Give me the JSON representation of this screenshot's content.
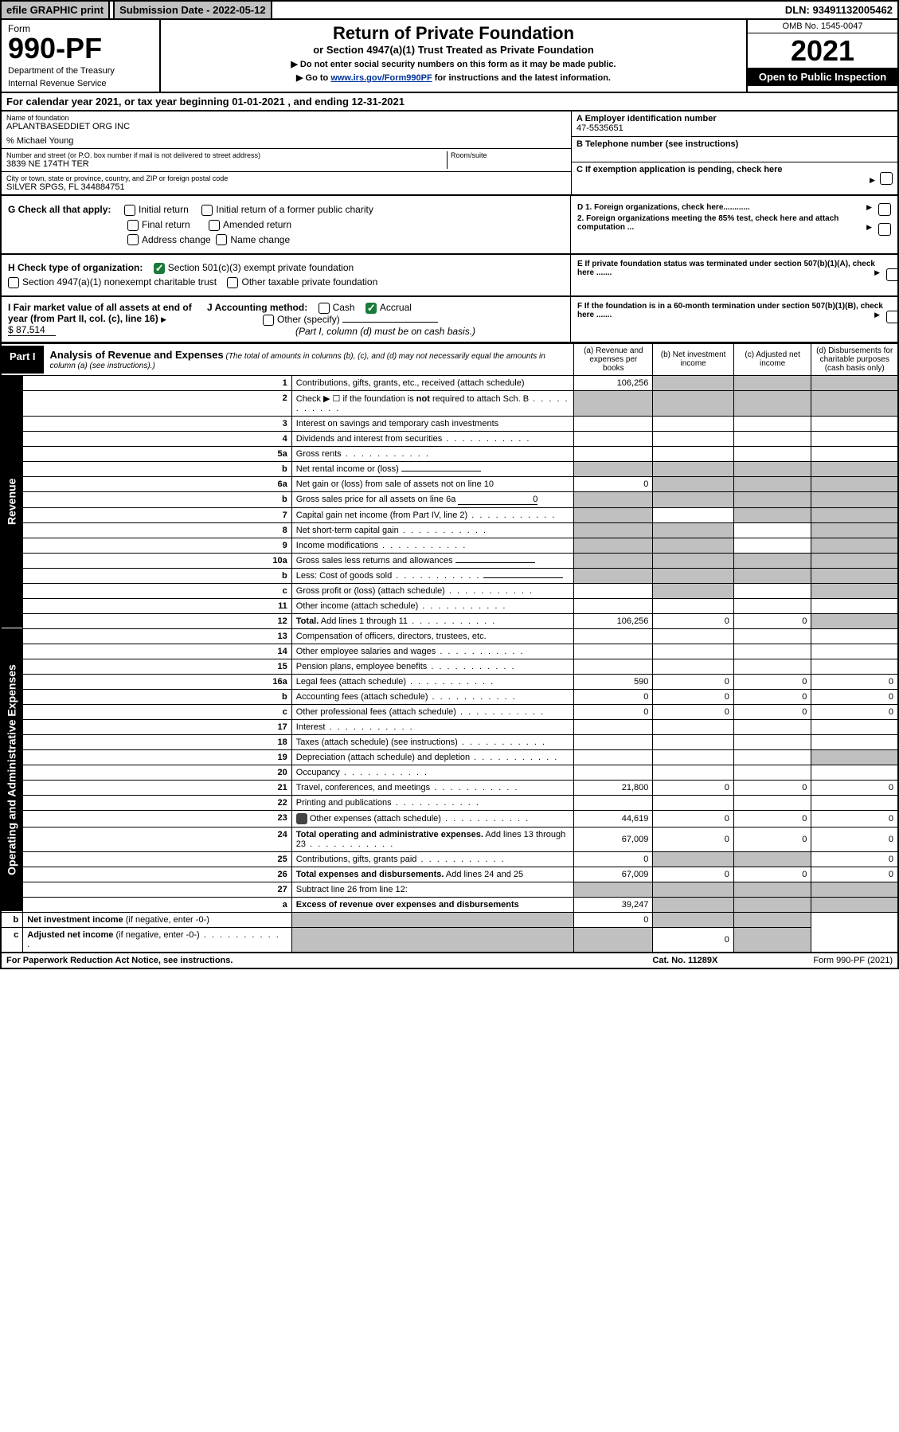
{
  "topbar": {
    "efile": "efile GRAPHIC print",
    "submission": "Submission Date - 2022-05-12",
    "dln": "DLN: 93491132005462"
  },
  "header": {
    "form": "Form",
    "formno": "990-PF",
    "dept": "Department of the Treasury",
    "irs": "Internal Revenue Service",
    "title": "Return of Private Foundation",
    "sub": "or Section 4947(a)(1) Trust Treated as Private Foundation",
    "note1": "▶ Do not enter social security numbers on this form as it may be made public.",
    "note2_a": "▶ Go to ",
    "note2_link": "www.irs.gov/Form990PF",
    "note2_b": " for instructions and the latest information.",
    "omb": "OMB No. 1545-0047",
    "year": "2021",
    "open": "Open to Public Inspection"
  },
  "calendar": "For calendar year 2021, or tax year beginning 01-01-2021          , and ending 12-31-2021",
  "addr": {
    "name_lbl": "Name of foundation",
    "name_val": "APLANTBASEDDIET ORG INC",
    "co": "% Michael Young",
    "street_lbl": "Number and street (or P.O. box number if mail is not delivered to street address)",
    "street_val": "3839 NE 174TH TER",
    "room_lbl": "Room/suite",
    "city_lbl": "City or town, state or province, country, and ZIP or foreign postal code",
    "city_val": "SILVER SPGS, FL  344884751",
    "a_lbl": "A Employer identification number",
    "a_val": "47-5535651",
    "b_lbl": "B Telephone number (see instructions)",
    "c_lbl": "C If exemption application is pending, check here"
  },
  "checks": {
    "g": "G Check all that apply:",
    "g1": "Initial return",
    "g2": "Initial return of a former public charity",
    "g3": "Final return",
    "g4": "Amended return",
    "g5": "Address change",
    "g6": "Name change",
    "h": "H Check type of organization:",
    "h1": "Section 501(c)(3) exempt private foundation",
    "h2": "Section 4947(a)(1) nonexempt charitable trust",
    "h3": "Other taxable private foundation",
    "i": "I Fair market value of all assets at end of year (from Part II, col. (c), line 16)",
    "i_val": "$  87,514",
    "j": "J Accounting method:",
    "j1": "Cash",
    "j2": "Accrual",
    "j3": "Other (specify)",
    "j_note": "(Part I, column (d) must be on cash basis.)",
    "d1": "D 1. Foreign organizations, check here............",
    "d2": "2. Foreign organizations meeting the 85% test, check here and attach computation ...",
    "e": "E  If private foundation status was terminated under section 507(b)(1)(A), check here .......",
    "f": "F  If the foundation is in a 60-month termination under section 507(b)(1)(B), check here ......."
  },
  "part1": {
    "label": "Part I",
    "title": "Analysis of Revenue and Expenses",
    "note": " (The total of amounts in columns (b), (c), and (d) may not necessarily equal the amounts in column (a) (see instructions).)",
    "col_a": "(a)   Revenue and expenses per books",
    "col_b": "(b)   Net investment income",
    "col_c": "(c)   Adjusted net income",
    "col_d": "(d)   Disbursements for charitable purposes (cash basis only)"
  },
  "sidelabels": {
    "revenue": "Revenue",
    "expenses": "Operating and Administrative Expenses"
  },
  "rows": [
    {
      "n": "1",
      "d": "Contributions, gifts, grants, etc., received (attach schedule)",
      "a": "106,256",
      "bs": true,
      "cs": true,
      "ds": true
    },
    {
      "n": "2",
      "d": "Check ▶ ☐ if the foundation is <b>not</b> required to attach Sch. B",
      "dots": true,
      "as": true,
      "bs": true,
      "cs": true,
      "ds": true
    },
    {
      "n": "3",
      "d": "Interest on savings and temporary cash investments"
    },
    {
      "n": "4",
      "d": "Dividends and interest from securities",
      "dots": true
    },
    {
      "n": "5a",
      "d": "Gross rents",
      "dots": true
    },
    {
      "n": "b",
      "d": "Net rental income or (loss)",
      "inline": true,
      "as": true,
      "bs": true,
      "cs": true,
      "ds": true
    },
    {
      "n": "6a",
      "d": "Net gain or (loss) from sale of assets not on line 10",
      "a": "0",
      "bs": true,
      "cs": true,
      "ds": true
    },
    {
      "n": "b",
      "d": "Gross sales price for all assets on line 6a",
      "inline": true,
      "ival": "0",
      "as": true,
      "bs": true,
      "cs": true,
      "ds": true
    },
    {
      "n": "7",
      "d": "Capital gain net income (from Part IV, line 2)",
      "dots": true,
      "as": true,
      "cs": true,
      "ds": true
    },
    {
      "n": "8",
      "d": "Net short-term capital gain",
      "dots": true,
      "as": true,
      "bs": true,
      "ds": true
    },
    {
      "n": "9",
      "d": "Income modifications",
      "dots": true,
      "as": true,
      "bs": true,
      "ds": true
    },
    {
      "n": "10a",
      "d": "Gross sales less returns and allowances",
      "inline": true,
      "as": true,
      "bs": true,
      "cs": true,
      "ds": true
    },
    {
      "n": "b",
      "d": "Less: Cost of goods sold",
      "dots": true,
      "inline": true,
      "as": true,
      "bs": true,
      "cs": true,
      "ds": true
    },
    {
      "n": "c",
      "d": "Gross profit or (loss) (attach schedule)",
      "dots": true,
      "bs": true,
      "ds": true
    },
    {
      "n": "11",
      "d": "Other income (attach schedule)",
      "dots": true
    },
    {
      "n": "12",
      "d": "<b>Total.</b> Add lines 1 through 11",
      "dots": true,
      "a": "106,256",
      "b": "0",
      "c": "0",
      "ds": true
    },
    {
      "n": "13",
      "d": "Compensation of officers, directors, trustees, etc."
    },
    {
      "n": "14",
      "d": "Other employee salaries and wages",
      "dots": true
    },
    {
      "n": "15",
      "d": "Pension plans, employee benefits",
      "dots": true
    },
    {
      "n": "16a",
      "d": "Legal fees (attach schedule)",
      "dots": true,
      "a": "590",
      "b": "0",
      "c": "0",
      "dv": "0"
    },
    {
      "n": "b",
      "d": "Accounting fees (attach schedule)",
      "dots": true,
      "a": "0",
      "b": "0",
      "c": "0",
      "dv": "0"
    },
    {
      "n": "c",
      "d": "Other professional fees (attach schedule)",
      "dots": true,
      "a": "0",
      "b": "0",
      "c": "0",
      "dv": "0"
    },
    {
      "n": "17",
      "d": "Interest",
      "dots": true
    },
    {
      "n": "18",
      "d": "Taxes (attach schedule) (see instructions)",
      "dots": true
    },
    {
      "n": "19",
      "d": "Depreciation (attach schedule) and depletion",
      "dots": true,
      "ds": true
    },
    {
      "n": "20",
      "d": "Occupancy",
      "dots": true
    },
    {
      "n": "21",
      "d": "Travel, conferences, and meetings",
      "dots": true,
      "a": "21,800",
      "b": "0",
      "c": "0",
      "dv": "0"
    },
    {
      "n": "22",
      "d": "Printing and publications",
      "dots": true
    },
    {
      "n": "23",
      "d": "Other expenses (attach schedule)",
      "dots": true,
      "icon": true,
      "a": "44,619",
      "b": "0",
      "c": "0",
      "dv": "0"
    },
    {
      "n": "24",
      "d": "<b>Total operating and administrative expenses.</b> Add lines 13 through 23",
      "dots": true,
      "a": "67,009",
      "b": "0",
      "c": "0",
      "dv": "0"
    },
    {
      "n": "25",
      "d": "Contributions, gifts, grants paid",
      "dots": true,
      "a": "0",
      "bs": true,
      "cs": true,
      "dv": "0"
    },
    {
      "n": "26",
      "d": "<b>Total expenses and disbursements.</b> Add lines 24 and 25",
      "a": "67,009",
      "b": "0",
      "c": "0",
      "dv": "0"
    },
    {
      "n": "27",
      "d": "Subtract line 26 from line 12:",
      "as": true,
      "bs": true,
      "cs": true,
      "ds": true
    },
    {
      "n": "a",
      "d": "<b>Excess of revenue over expenses and disbursements</b>",
      "a": "39,247",
      "bs": true,
      "cs": true,
      "ds": true
    },
    {
      "n": "b",
      "d": "<b>Net investment income</b> (if negative, enter -0-)",
      "as": true,
      "b": "0",
      "cs": true,
      "ds": true
    },
    {
      "n": "c",
      "d": "<b>Adjusted net income</b> (if negative, enter -0-)",
      "dots": true,
      "as": true,
      "bs": true,
      "c": "0",
      "ds": true
    }
  ],
  "footer": {
    "left": "For Paperwork Reduction Act Notice, see instructions.",
    "mid": "Cat. No. 11289X",
    "right": "Form 990-PF (2021)"
  }
}
